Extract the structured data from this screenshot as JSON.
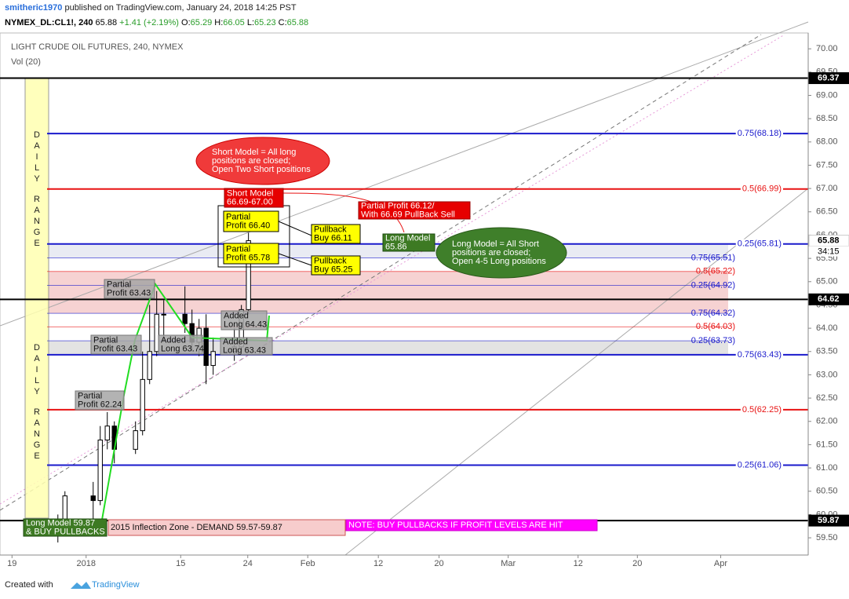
{
  "header": {
    "user": "smitheric1970",
    "published": "published on TradingView.com, January 24, 2018 14:25 PST",
    "symbol": "NYMEX_DL:CL1!, 240",
    "last": "65.88",
    "change": "+1.41 (+2.19%)",
    "ohlc": [
      {
        "label": "O:",
        "value": "65.29"
      },
      {
        "label": "H:",
        "value": "66.05"
      },
      {
        "label": "L:",
        "value": "65.23"
      },
      {
        "label": "C:",
        "value": "65.88"
      }
    ]
  },
  "chart_data": {
    "type": "candlestick",
    "title": "LIGHT CRUDE OIL FUTURES, 240, NYMEX",
    "subtitle": "Vol (20)",
    "x": [
      -4,
      -3,
      1,
      2,
      3,
      4,
      7,
      8,
      9,
      10,
      11,
      14,
      15,
      16,
      17,
      18,
      21,
      22,
      23
    ],
    "open": [
      59.6,
      59.9,
      60.4,
      60.3,
      61.6,
      61.9,
      61.4,
      61.8,
      62.9,
      63.5,
      64.3,
      64.3,
      64.1,
      63.7,
      64.0,
      63.2,
      63.5,
      63.6,
      64.4
    ],
    "high": [
      60.0,
      60.5,
      60.7,
      61.9,
      62.2,
      62.0,
      62.0,
      63.5,
      64.5,
      64.8,
      64.6,
      64.9,
      64.4,
      64.2,
      64.3,
      63.8,
      64.0,
      64.5,
      66.05
    ],
    "low": [
      59.4,
      59.7,
      59.9,
      60.2,
      61.4,
      61.1,
      61.3,
      61.7,
      62.8,
      63.4,
      63.7,
      63.9,
      63.5,
      63.4,
      62.8,
      63.0,
      63.3,
      63.5,
      64.3
    ],
    "close": [
      59.9,
      60.4,
      60.3,
      61.6,
      61.9,
      61.4,
      61.8,
      62.9,
      63.5,
      64.3,
      64.3,
      64.1,
      63.7,
      64.0,
      63.2,
      63.5,
      63.6,
      64.4,
      65.88
    ],
    "xlim": [
      -12.2,
      102.3
    ],
    "xticks": [
      {
        "value": -10.5,
        "label": "19"
      },
      {
        "value": 0,
        "label": "2018"
      },
      {
        "value": 13.4,
        "label": "15"
      },
      {
        "value": 22.9,
        "label": "24"
      },
      {
        "value": 31.4,
        "label": "Feb"
      },
      {
        "value": 41.4,
        "label": "12"
      },
      {
        "value": 50,
        "label": "20"
      },
      {
        "value": 59.8,
        "label": "Mar"
      },
      {
        "value": 69.7,
        "label": "12"
      },
      {
        "value": 78.1,
        "label": "20"
      },
      {
        "value": 89.9,
        "label": "Apr"
      }
    ],
    "ylim": [
      59.13,
      70.34
    ],
    "yticks": [
      {
        "value": 59.5,
        "label": "59.50"
      },
      {
        "value": 60,
        "label": "60.00"
      },
      {
        "value": 60.5,
        "label": "60.50"
      },
      {
        "value": 61,
        "label": "61.00"
      },
      {
        "value": 61.5,
        "label": "61.50"
      },
      {
        "value": 62,
        "label": "62.00"
      },
      {
        "value": 62.5,
        "label": "62.50"
      },
      {
        "value": 63,
        "label": "63.00"
      },
      {
        "value": 63.5,
        "label": "63.50"
      },
      {
        "value": 64,
        "label": "64.00"
      },
      {
        "value": 64.5,
        "label": "64.50"
      },
      {
        "value": 65,
        "label": "65.00"
      },
      {
        "value": 65.5,
        "label": "65.50"
      },
      {
        "value": 66,
        "label": "66.00"
      },
      {
        "value": 66.5,
        "label": "66.50"
      },
      {
        "value": 67,
        "label": "67.00"
      },
      {
        "value": 67.5,
        "label": "67.50"
      },
      {
        "value": 68,
        "label": "68.00"
      },
      {
        "value": 68.5,
        "label": "68.50"
      },
      {
        "value": 69,
        "label": "69.00"
      },
      {
        "value": 69.5,
        "label": "69.50"
      },
      {
        "value": 70,
        "label": "70.00"
      }
    ],
    "zones": [
      {
        "from": 64.32,
        "to": 65.22,
        "color": "#f4c7c7"
      },
      {
        "from": 63.43,
        "to": 63.73,
        "color": "#dcdcdc"
      },
      {
        "from": 65.51,
        "to": 65.81,
        "color": "#e3e6f0"
      }
    ],
    "levels": [
      {
        "value": 68.18,
        "label": "0.75(68.18)",
        "color": "#1a1acc",
        "major": true
      },
      {
        "value": 66.99,
        "label": "0.5(66.99)",
        "color": "#e81212",
        "major": true
      },
      {
        "value": 65.81,
        "label": "0.25(65.81)",
        "color": "#1a1acc",
        "major": true
      },
      {
        "value": 65.51,
        "label": "0.75(65.51)",
        "color": "#1a1acc",
        "major": false
      },
      {
        "value": 65.22,
        "label": "0.5(65.22)",
        "color": "#e81212",
        "major": false
      },
      {
        "value": 64.92,
        "label": "0.25(64.92)",
        "color": "#1a1acc",
        "major": false
      },
      {
        "value": 64.32,
        "label": "0.75(64.32)",
        "color": "#1a1acc",
        "major": false
      },
      {
        "value": 64.03,
        "label": "0.5(64.03)",
        "color": "#e81212",
        "major": false
      },
      {
        "value": 63.73,
        "label": "0.25(63.73)",
        "color": "#1a1acc",
        "major": false
      },
      {
        "value": 63.43,
        "label": "0.75(63.43)",
        "color": "#1a1acc",
        "major": true
      },
      {
        "value": 62.25,
        "label": "0.5(62.25)",
        "color": "#e81212",
        "major": true
      },
      {
        "value": 61.06,
        "label": "0.25(61.06)",
        "color": "#1a1acc",
        "major": true
      }
    ],
    "price_badges": [
      {
        "value": 69.37,
        "label": "69.37",
        "color": "#000000",
        "line": true
      },
      {
        "value": 65.88,
        "label": "65.88",
        "color": "#ffffff",
        "line": false
      },
      {
        "value": 64.62,
        "label": "64.62",
        "color": "#000000",
        "line": true
      },
      {
        "value": 59.87,
        "label": "59.87",
        "color": "#000000",
        "line": true
      }
    ],
    "countdown": "34:15",
    "range_label": [
      "DAILY",
      "RANGE"
    ],
    "annotations": [
      {
        "lines": [
          "Short Model = All long",
          "positions are closed;",
          "Open Two Short positions"
        ],
        "style": "red-ellipse"
      },
      {
        "lines": [
          "Short Model",
          "66.69-67.00"
        ],
        "style": "red-box"
      },
      {
        "lines": [
          "Partial Profit 66.12/",
          "With 66.69 PullBack Sell"
        ],
        "style": "red-box"
      },
      {
        "lines": [
          "Partial",
          "Profit 66.40"
        ],
        "style": "yellow"
      },
      {
        "lines": [
          "Pullback",
          "Buy 66.11"
        ],
        "style": "yellow"
      },
      {
        "lines": [
          "Partial",
          "Profit 65.78"
        ],
        "style": "yellow"
      },
      {
        "lines": [
          "Pullback",
          "Buy 65.25"
        ],
        "style": "yellow"
      },
      {
        "lines": [
          "Long Model",
          "65.86"
        ],
        "style": "green-box"
      },
      {
        "lines": [
          "Long Model = All Short",
          "positions are closed;",
          "Open 4-5 Long positions"
        ],
        "style": "green-ellipse"
      },
      {
        "lines": [
          "Partial",
          "Profit 63.43"
        ],
        "style": "gray"
      },
      {
        "lines": [
          "Partial",
          "Profit 63.43"
        ],
        "style": "gray"
      },
      {
        "lines": [
          "Added",
          "Long 63.74"
        ],
        "style": "gray"
      },
      {
        "lines": [
          "Added",
          "Long 64.43"
        ],
        "style": "gray"
      },
      {
        "lines": [
          "Added",
          "Long 63.43"
        ],
        "style": "gray"
      },
      {
        "lines": [
          "Partial",
          "Profit 62.24"
        ],
        "style": "gray"
      },
      {
        "lines": [
          "Long Model 59.87",
          "& BUY PULLBACKS"
        ],
        "style": "green-box"
      },
      {
        "lines": [
          "2015 Inflection Zone - DEMAND 59.57-59.87"
        ],
        "style": "pink"
      },
      {
        "lines": [
          "NOTE: BUY PULLBACKS IF PROFIT LEVELS ARE HIT"
        ],
        "style": "magenta"
      }
    ]
  },
  "footer": {
    "created": "Created with",
    "brand": "TradingView"
  }
}
